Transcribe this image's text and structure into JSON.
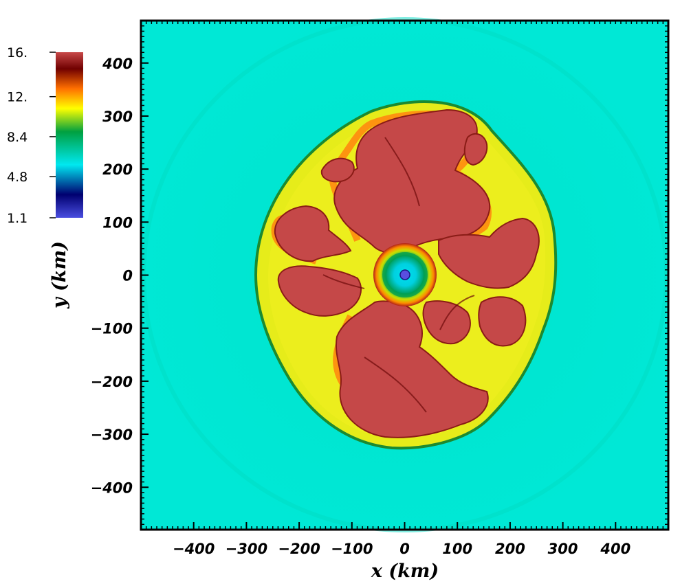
{
  "chart_data": {
    "type": "heatmap",
    "title": "",
    "xlabel": "x  (km)",
    "ylabel": "y  (km)",
    "xlim": [
      -500,
      500
    ],
    "ylim": [
      -480,
      480
    ],
    "xticks": [
      -400,
      -300,
      -200,
      -100,
      0,
      100,
      200,
      300,
      400
    ],
    "xtick_labels": [
      "−400",
      "−300",
      "−200",
      "−100",
      "0",
      "100",
      "200",
      "300",
      "400"
    ],
    "yticks": [
      400,
      300,
      200,
      100,
      0,
      -100,
      -200,
      -300,
      -400
    ],
    "ytick_labels": [
      "400",
      "300",
      "200",
      "100",
      "0",
      "−100",
      "−200",
      "−300",
      "−400"
    ],
    "colorbar": {
      "min": 1.1,
      "max": 16,
      "ticks": [
        16,
        12,
        8.4,
        4.8,
        1.1
      ],
      "tick_labels": [
        "16.",
        "12.",
        "8.4",
        "4.8",
        "1.1"
      ],
      "colors": [
        "#4a4ee0",
        "#000070",
        "#00d8e8",
        "#00a060",
        "#ffff00",
        "#ff8800",
        "#700000",
        "#c84848"
      ]
    },
    "background_color": "#00e8d0",
    "grid": false
  }
}
